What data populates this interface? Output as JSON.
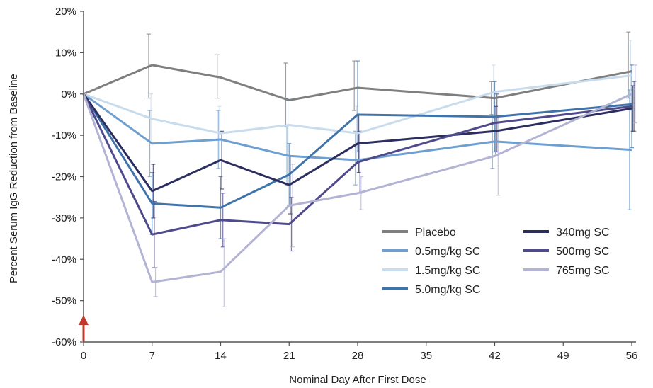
{
  "chart_data": {
    "type": "line",
    "xlabel": "Nominal Day After First Dose",
    "ylabel": "Percent Serum IgG Reduction from Baseline",
    "x": [
      0,
      7,
      14,
      21,
      28,
      42,
      56
    ],
    "x_ticks": [
      0,
      7,
      14,
      21,
      28,
      35,
      42,
      49,
      56
    ],
    "x_tick_labels": [
      "0",
      "7",
      "14",
      "21",
      "28",
      "35",
      "42",
      "49",
      "56"
    ],
    "y_ticks": [
      20,
      10,
      0,
      -10,
      -20,
      -30,
      -40,
      -50,
      -60
    ],
    "y_tick_labels": [
      "20%",
      "10%",
      "0%",
      "-10%",
      "-20%",
      "-30%",
      "-40%",
      "-50%",
      "-60%"
    ],
    "xlim": [
      0,
      56
    ],
    "ylim": [
      -60,
      20
    ],
    "grid": false,
    "legend_position": "bottom-right",
    "first_dose_marker_day": 0,
    "series": [
      {
        "name": "Placebo",
        "color": "#7f7f7f",
        "values": [
          0,
          7,
          4,
          -1.5,
          1.5,
          -1,
          5.5
        ],
        "err_low": [
          0,
          -1,
          -1,
          -8,
          -4,
          -5,
          -1
        ],
        "err_high": [
          0,
          14.5,
          9.5,
          7.5,
          8,
          3,
          15
        ]
      },
      {
        "name": "0.5mg/kg SC",
        "color": "#6f9fd0",
        "values": [
          0,
          -12,
          -11,
          -15,
          -16,
          -11.5,
          -13.5
        ],
        "err_low": [
          0,
          -20,
          -18,
          -22,
          -22,
          -18,
          -28
        ],
        "err_high": [
          0,
          -4,
          -4,
          -8,
          -9,
          -5,
          1
        ]
      },
      {
        "name": "1.5mg/kg SC",
        "color": "#c8dcee",
        "values": [
          0,
          -6,
          -9.5,
          -7.5,
          -9.5,
          0.5,
          4.5
        ],
        "err_low": [
          0,
          -12,
          -16,
          -14,
          -16,
          -6,
          -4
        ],
        "err_high": [
          0,
          0,
          -3,
          -1,
          -3,
          7,
          13
        ]
      },
      {
        "name": "5.0mg/kg SC",
        "color": "#3f73aa",
        "values": [
          0,
          -26.5,
          -27.5,
          -19.5,
          -5,
          -5.5,
          -2.5
        ],
        "err_low": [
          0,
          -34,
          -35,
          -27,
          -14,
          -14,
          -13
        ],
        "err_high": [
          0,
          -19,
          -20,
          -12,
          8,
          3,
          7
        ]
      },
      {
        "name": "340mg SC",
        "color": "#2b2e5e",
        "values": [
          0,
          -23.5,
          -16,
          -22,
          -12,
          -9,
          -3.5
        ],
        "err_low": [
          0,
          -30,
          -23,
          -29,
          -19,
          -15,
          -9
        ],
        "err_high": [
          0,
          -17,
          -9,
          -15,
          -5,
          -3,
          2
        ]
      },
      {
        "name": "500mg SC",
        "color": "#4e4a8c",
        "values": [
          0,
          -34,
          -30.5,
          -31.5,
          -16.5,
          -7,
          -3
        ],
        "err_low": [
          0,
          -42,
          -37,
          -38,
          -24,
          -14,
          -9
        ],
        "err_high": [
          0,
          -26,
          -24,
          -25,
          -9,
          0,
          3
        ]
      },
      {
        "name": "765mg SC",
        "color": "#b3b3d6",
        "values": [
          0,
          -45.5,
          -43,
          -27,
          -24,
          -15,
          0
        ],
        "err_low": [
          0,
          -49,
          -51.5,
          -37,
          -28,
          -24.5,
          -7
        ],
        "err_high": [
          0,
          -42,
          -35,
          -17,
          -20,
          -5.5,
          7
        ]
      }
    ]
  }
}
